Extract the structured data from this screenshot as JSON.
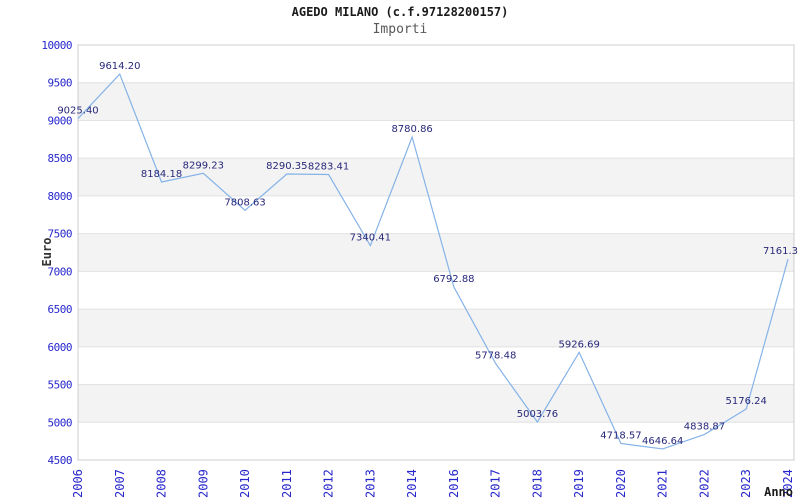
{
  "chart_data": {
    "type": "line",
    "title": "AGEDO MILANO (c.f.97128200157)",
    "subtitle": "Importi",
    "xlabel": "Anno",
    "ylabel": "Euro",
    "categories": [
      "2006",
      "2007",
      "2008",
      "2009",
      "2010",
      "2011",
      "2012",
      "2013",
      "2014",
      "2016",
      "2017",
      "2018",
      "2019",
      "2020",
      "2021",
      "2022",
      "2023",
      "2024"
    ],
    "values": [
      9025.4,
      9614.2,
      8184.18,
      8299.23,
      7808.63,
      8290.35,
      8283.41,
      7340.41,
      8780.86,
      6792.88,
      5778.48,
      5003.76,
      5926.69,
      4718.57,
      4646.64,
      4838.87,
      5176.24,
      7161.3
    ],
    "point_labels": [
      "9025.40",
      "9614.20",
      "8184.18",
      "8299.23",
      "7808.63",
      "8290.35",
      "8283.41",
      "7340.41",
      "8780.86",
      "6792.88",
      "5778.48",
      "5003.76",
      "5926.69",
      "4718.57",
      "4646.64",
      "4838.87",
      "5176.24",
      "7161.3"
    ],
    "ylim": [
      4500,
      10000
    ],
    "ytick_step": 500,
    "yticks": [
      10000,
      9500,
      9000,
      8500,
      8000,
      7500,
      7000,
      6500,
      6000,
      5500,
      5000,
      4500
    ],
    "grid": "horizontal-bands",
    "legend": "none",
    "colors": {
      "line": "#85b3e8",
      "tick_label": "#2727cc",
      "point_label": "#28287a",
      "band_alt": "#f3f3f3",
      "gridline": "#e2e2e2",
      "border": "#cfcfcf",
      "title": "#1a1a1a",
      "subtitle": "#595959",
      "axis_title": "#333333",
      "background": "#ffffff"
    }
  }
}
